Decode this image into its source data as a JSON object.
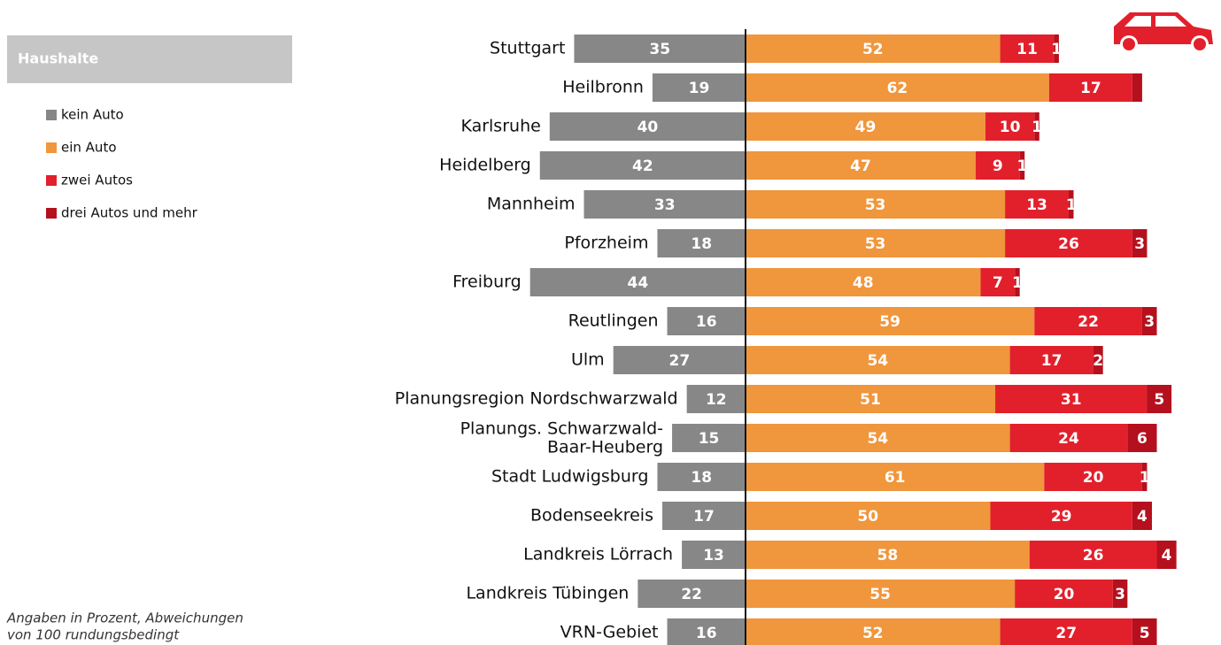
{
  "chart_data": {
    "type": "diverging_stacked_bar",
    "legend_title": "Haushalte",
    "note": "Angaben in Prozent, Abweichungen\nvon 100 rundungsbedingt",
    "categories": [
      "Stuttgart",
      "Heilbronn",
      "Karlsruhe",
      "Heidelberg",
      "Mannheim",
      "Pforzheim",
      "Freiburg",
      "Reutlingen",
      "Ulm",
      "Planungsregion Nordschwarzwald",
      "Planungs. Schwarzwald-\nBaar-Heuberg",
      "Stadt Ludwigsburg",
      "Bodenseekreis",
      "Landkreis Lörrach",
      "Landkreis Tübingen",
      "VRN-Gebiet"
    ],
    "series": [
      {
        "name": "kein Auto",
        "color": "#878787",
        "values": [
          35,
          19,
          40,
          42,
          33,
          18,
          44,
          16,
          27,
          12,
          15,
          18,
          17,
          13,
          22,
          16
        ]
      },
      {
        "name": "ein Auto",
        "color": "#f0963c",
        "values": [
          52,
          62,
          49,
          47,
          53,
          53,
          48,
          59,
          54,
          51,
          54,
          61,
          50,
          58,
          55,
          52
        ]
      },
      {
        "name": "zwei Autos",
        "color": "#e2202b",
        "values": [
          11,
          17,
          10,
          9,
          13,
          26,
          7,
          22,
          17,
          31,
          24,
          20,
          29,
          26,
          20,
          27
        ]
      },
      {
        "name": "drei Autos und mehr",
        "color": "#b5101d",
        "values": [
          1,
          2,
          1,
          1,
          1,
          3,
          1,
          3,
          2,
          5,
          6,
          1,
          4,
          4,
          3,
          5
        ],
        "value_labels": [
          "1",
          null,
          "1",
          "1",
          "1",
          "3",
          "1",
          "3",
          "2",
          "5",
          "6",
          "1",
          "4",
          "4",
          "3",
          "5"
        ]
      }
    ]
  }
}
